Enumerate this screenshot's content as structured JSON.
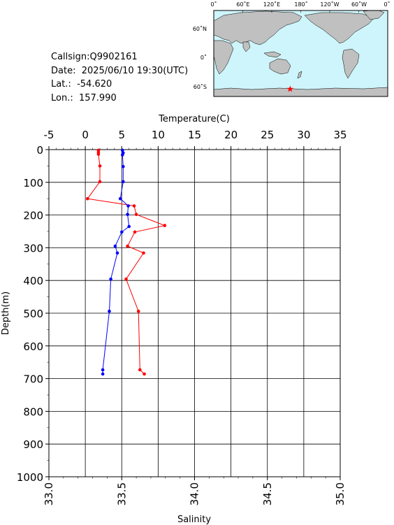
{
  "station": {
    "callsign": "Callsign:Q9902161",
    "date": "Date:  2025/06/10 19:30(UTC)",
    "lat": "Lat.:  -54.620",
    "lon": "Lon.:  157.990"
  },
  "map": {
    "top_labels": [
      "0˚",
      "60˚E",
      "120˚E",
      "180˚",
      "120˚W",
      "60˚W",
      "0˚"
    ],
    "side_labels": [
      "60˚N",
      "0˚",
      "60˚S"
    ],
    "ocean_color": "#cdf5fb",
    "land_color": "#c0c0c0",
    "marker": {
      "lon": 157.99,
      "lat": -54.62,
      "color": "#ff0000",
      "icon": "star-icon"
    }
  },
  "chart_data": {
    "type": "line",
    "title": "",
    "ylabel": "Depth(m)",
    "ylim": [
      0,
      1000
    ],
    "y_ticks": [
      "0",
      "100",
      "200",
      "300",
      "400",
      "500",
      "600",
      "700",
      "800",
      "900",
      "1000"
    ],
    "temperature_axis": {
      "label": "Temperature(C)",
      "lim": [
        -5,
        35
      ],
      "ticks": [
        "-5",
        "0",
        "5",
        "10",
        "15",
        "20",
        "25",
        "30",
        "35"
      ]
    },
    "salinity_axis": {
      "label": "Salinity",
      "lim": [
        33.0,
        35.0
      ],
      "ticks": [
        "33.0",
        "33.5",
        "34.0",
        "34.5",
        "35.0"
      ]
    },
    "series": [
      {
        "key": "temperature",
        "color": "#ff0000",
        "axis": "temperature",
        "points": [
          [
            1.8,
            2
          ],
          [
            1.8,
            8
          ],
          [
            1.8,
            14
          ],
          [
            2.0,
            50
          ],
          [
            2.0,
            98
          ],
          [
            0.3,
            150
          ],
          [
            6.7,
            172
          ],
          [
            7.0,
            198
          ],
          [
            10.9,
            232
          ],
          [
            6.8,
            252
          ],
          [
            5.8,
            295
          ],
          [
            8.0,
            316
          ],
          [
            5.6,
            396
          ],
          [
            7.3,
            494
          ],
          [
            7.5,
            673
          ],
          [
            8.1,
            686
          ]
        ]
      },
      {
        "key": "salinity",
        "color": "#0000ff",
        "axis": "salinity",
        "points": [
          [
            33.505,
            2
          ],
          [
            33.51,
            10
          ],
          [
            33.505,
            16
          ],
          [
            33.51,
            52
          ],
          [
            33.51,
            98
          ],
          [
            33.49,
            150
          ],
          [
            33.545,
            172
          ],
          [
            33.54,
            198
          ],
          [
            33.55,
            235
          ],
          [
            33.5,
            252
          ],
          [
            33.455,
            295
          ],
          [
            33.47,
            316
          ],
          [
            33.425,
            396
          ],
          [
            33.415,
            494
          ],
          [
            33.37,
            673
          ],
          [
            33.37,
            686
          ]
        ]
      }
    ]
  }
}
